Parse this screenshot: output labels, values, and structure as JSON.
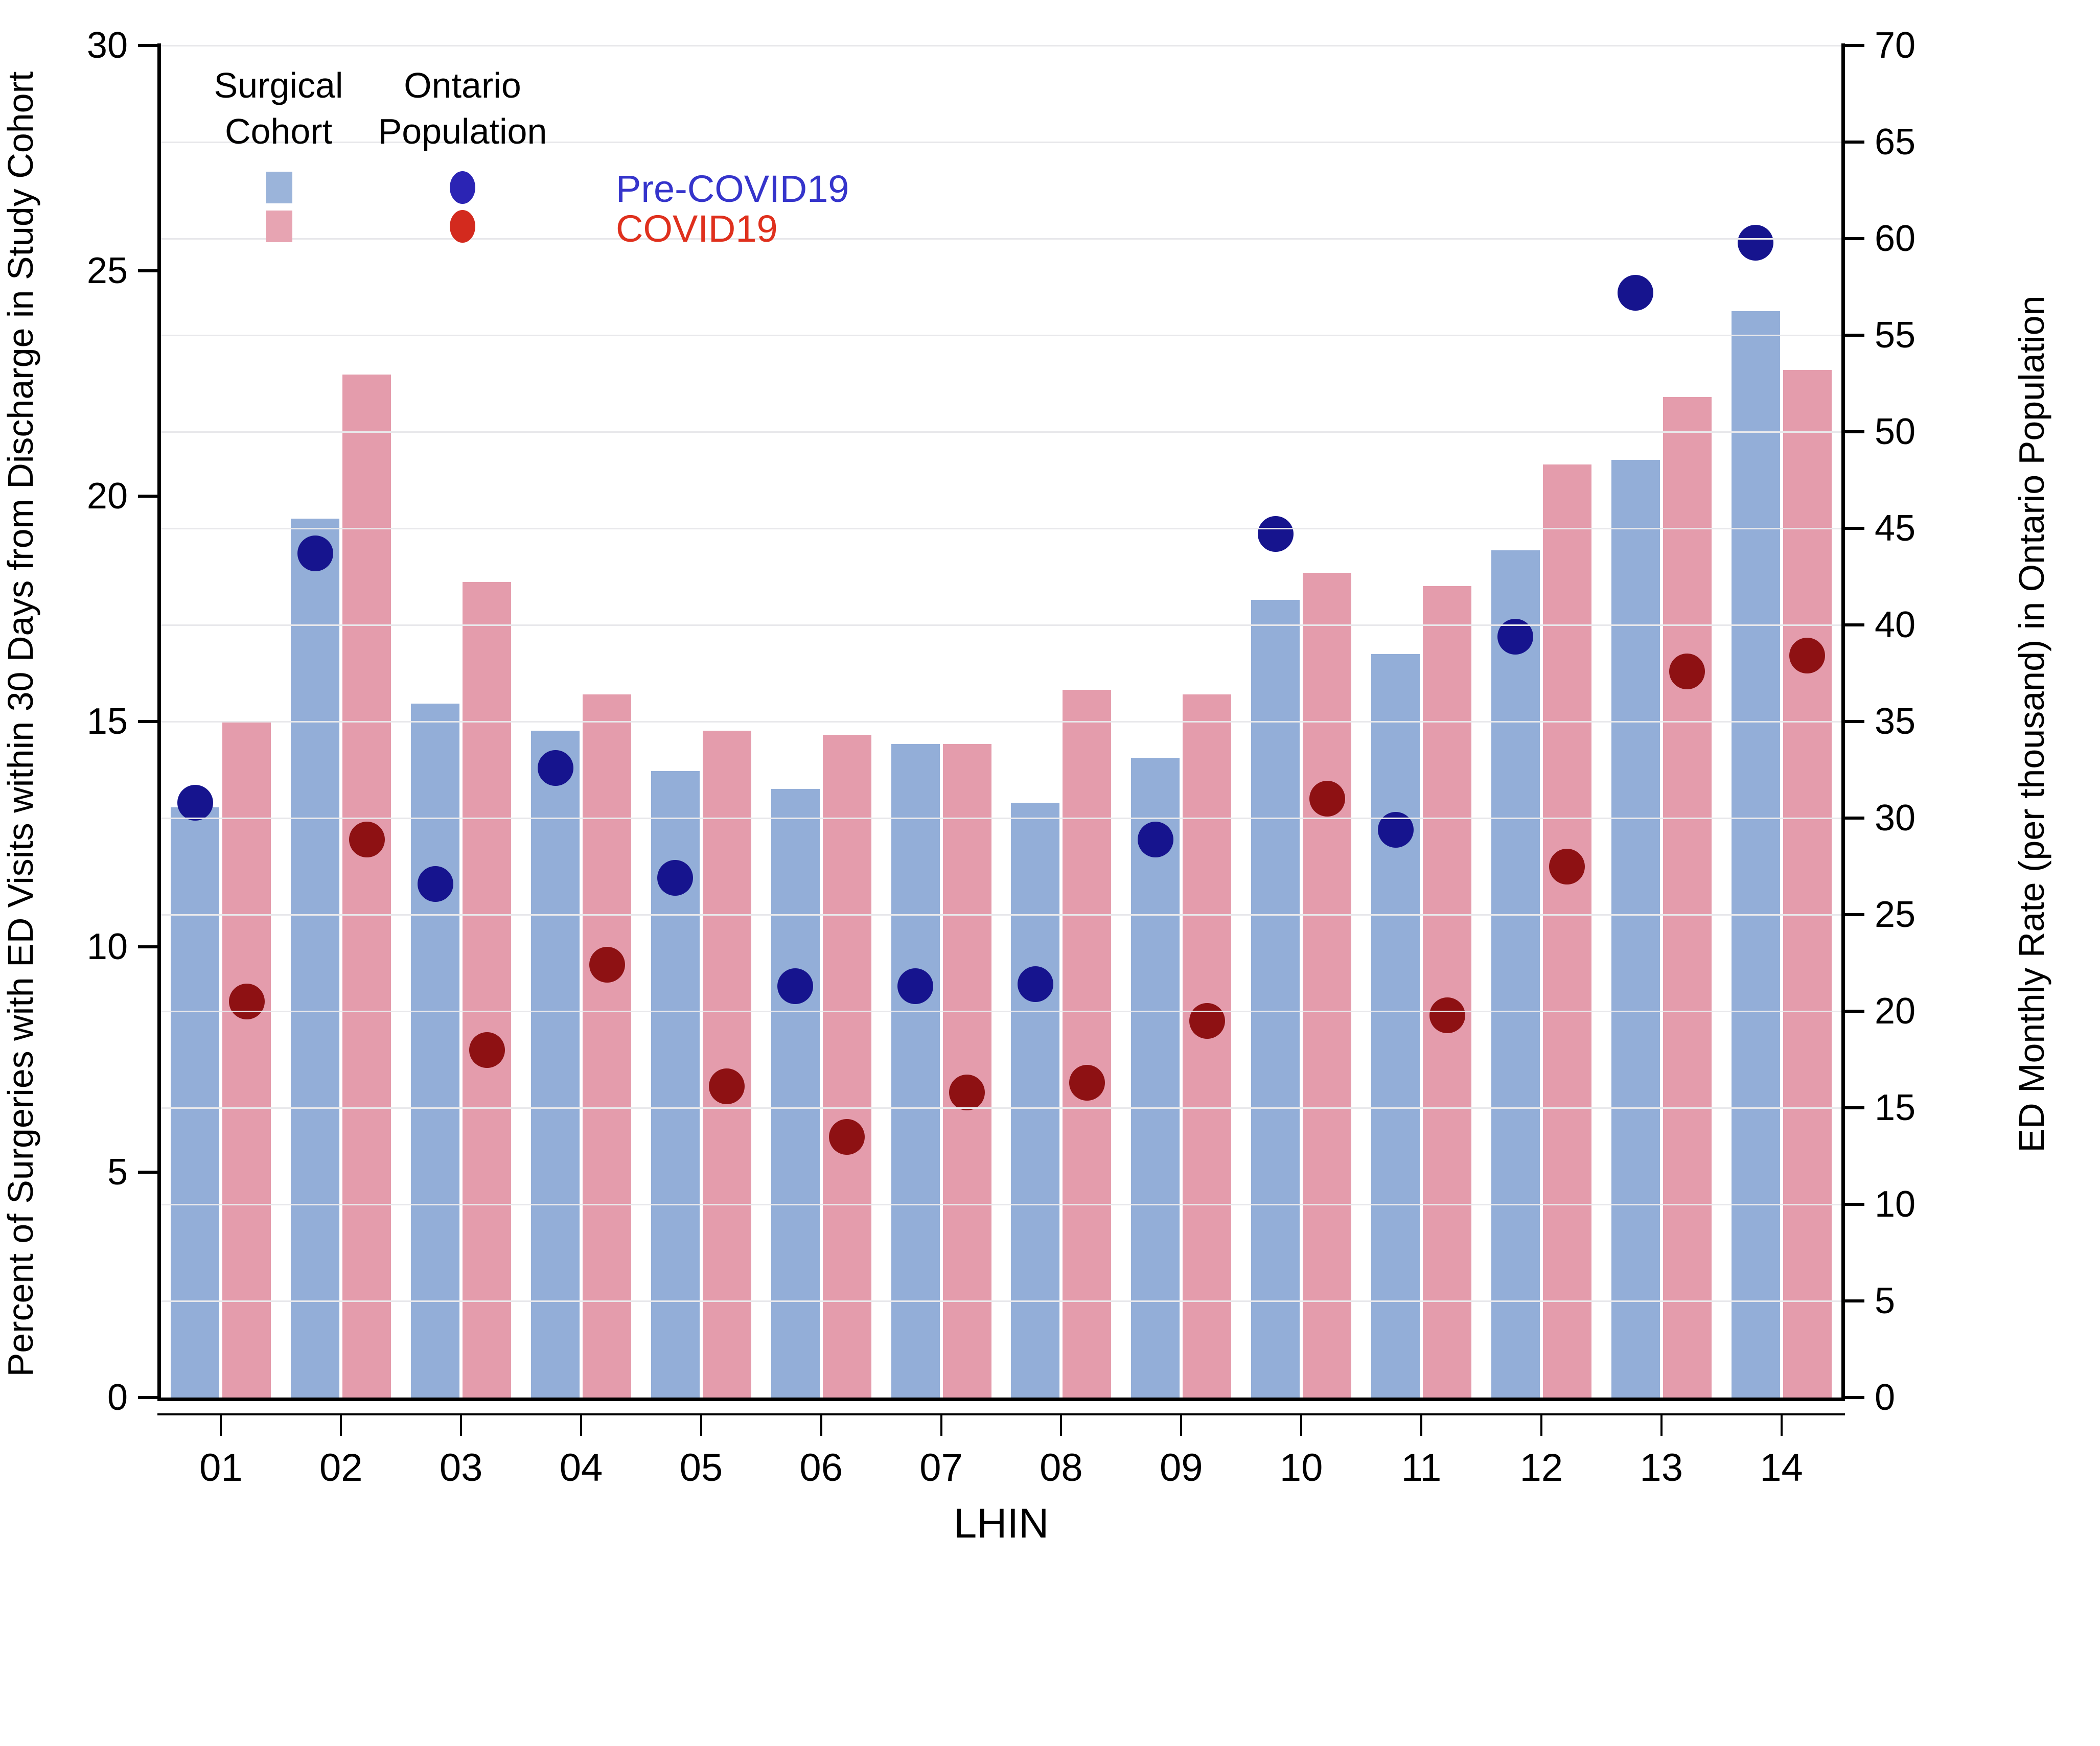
{
  "chart_data": {
    "type": "bar",
    "subtype": "grouped bars (left axis) with overlaid scatter dots (right axis)",
    "title": "",
    "xlabel": "LHIN",
    "categories": [
      "01",
      "02",
      "03",
      "04",
      "05",
      "06",
      "07",
      "08",
      "09",
      "10",
      "11",
      "12",
      "13",
      "14"
    ],
    "left_axis": {
      "label": "Percent of Surgeries with ED Visits within 30 Days from Discharge in Study Cohort",
      "min": 0,
      "max": 30,
      "tick_step": 5,
      "ticks": [
        "0",
        "5",
        "10",
        "15",
        "20",
        "25",
        "30"
      ]
    },
    "right_axis": {
      "label": "ED Monthly Rate (per thousand) in Ontario Population",
      "min": 0,
      "max": 70,
      "tick_step": 5,
      "ticks": [
        "0",
        "5",
        "10",
        "15",
        "20",
        "25",
        "30",
        "35",
        "40",
        "45",
        "50",
        "55",
        "60",
        "65",
        "70"
      ]
    },
    "grid": "horizontal gridlines at right-axis tick positions",
    "legend_position": "top-left inside plot",
    "series": [
      {
        "name": "Surgical Cohort Pre-COVID19",
        "type": "bar",
        "axis": "left",
        "color": "#93AED8",
        "values": [
          13.1,
          19.5,
          15.4,
          14.8,
          13.9,
          13.5,
          14.5,
          13.2,
          14.2,
          17.7,
          16.5,
          18.8,
          20.8,
          24.1
        ]
      },
      {
        "name": "Surgical Cohort COVID19",
        "type": "bar",
        "axis": "left",
        "color": "#E49CAC",
        "values": [
          15.0,
          22.7,
          18.1,
          15.6,
          14.8,
          14.7,
          14.5,
          15.7,
          15.6,
          18.3,
          18.0,
          20.7,
          22.2,
          22.8
        ]
      },
      {
        "name": "Ontario Population Pre-COVID19",
        "type": "scatter",
        "axis": "right",
        "color": "#16148E",
        "values": [
          30.8,
          43.7,
          26.6,
          32.6,
          26.9,
          21.3,
          21.3,
          21.4,
          28.9,
          44.7,
          29.4,
          39.4,
          57.2,
          59.8
        ]
      },
      {
        "name": "Ontario Population COVID19",
        "type": "scatter",
        "axis": "right",
        "color": "#8E1113",
        "values": [
          20.5,
          28.9,
          18.0,
          22.4,
          16.1,
          13.5,
          15.8,
          16.3,
          19.5,
          31.0,
          19.8,
          27.5,
          37.6,
          38.4
        ]
      }
    ]
  },
  "legend": {
    "col1_header_line1": "Surgical",
    "col1_header_line2": "Cohort",
    "col2_header_line1": "Ontario",
    "col2_header_line2": "Population",
    "rows": [
      {
        "label": "Pre-COVID19",
        "text_color": "#3534CB",
        "bar_color": "#9BB4DA",
        "dot_color": "#2B24B4"
      },
      {
        "label": "COVID19",
        "text_color": "#DF301D",
        "bar_color": "#E7A4B2",
        "dot_color": "#D32A1E"
      }
    ]
  },
  "colors": {
    "bar_pre": "#93AED8",
    "bar_covid": "#E49CAC",
    "dot_pre": "#16148E",
    "dot_covid": "#8E1113",
    "gridline": "#E8E8EB",
    "axis": "#000000"
  }
}
